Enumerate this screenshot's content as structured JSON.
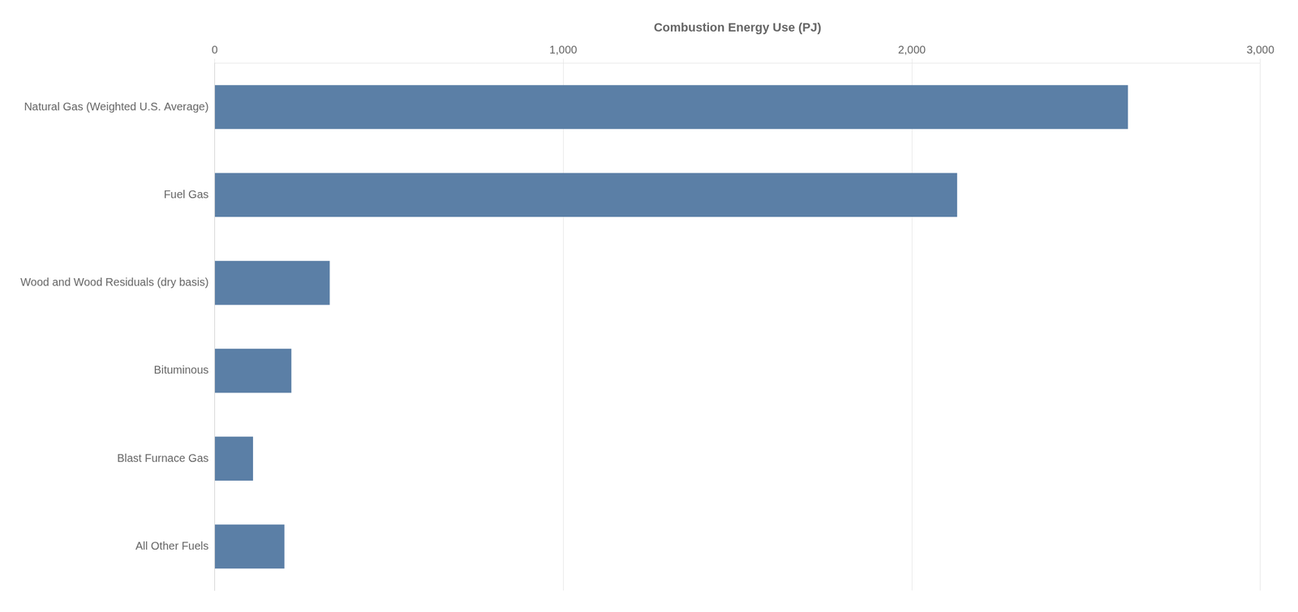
{
  "chart_data": {
    "type": "bar",
    "orientation": "horizontal",
    "xlabel": "Combustion Energy Use (PJ)",
    "categories": [
      "All Other Fuels",
      "Blast Furnace Gas",
      "Bituminous",
      "Wood and Wood Residuals (dry basis)",
      "Fuel Gas",
      "Natural Gas (Weighted U.S. Average)"
    ],
    "values": [
      200,
      110,
      220,
      330,
      2130,
      2620
    ],
    "color": "#5b7fa6",
    "xlim": [
      0,
      3000
    ],
    "xticks": [
      0,
      {
        "value": 1000,
        "label": "1,000"
      },
      {
        "value": 2000,
        "label": "2,000"
      },
      {
        "value": 3000,
        "label": "3,000"
      }
    ],
    "grid": true
  }
}
